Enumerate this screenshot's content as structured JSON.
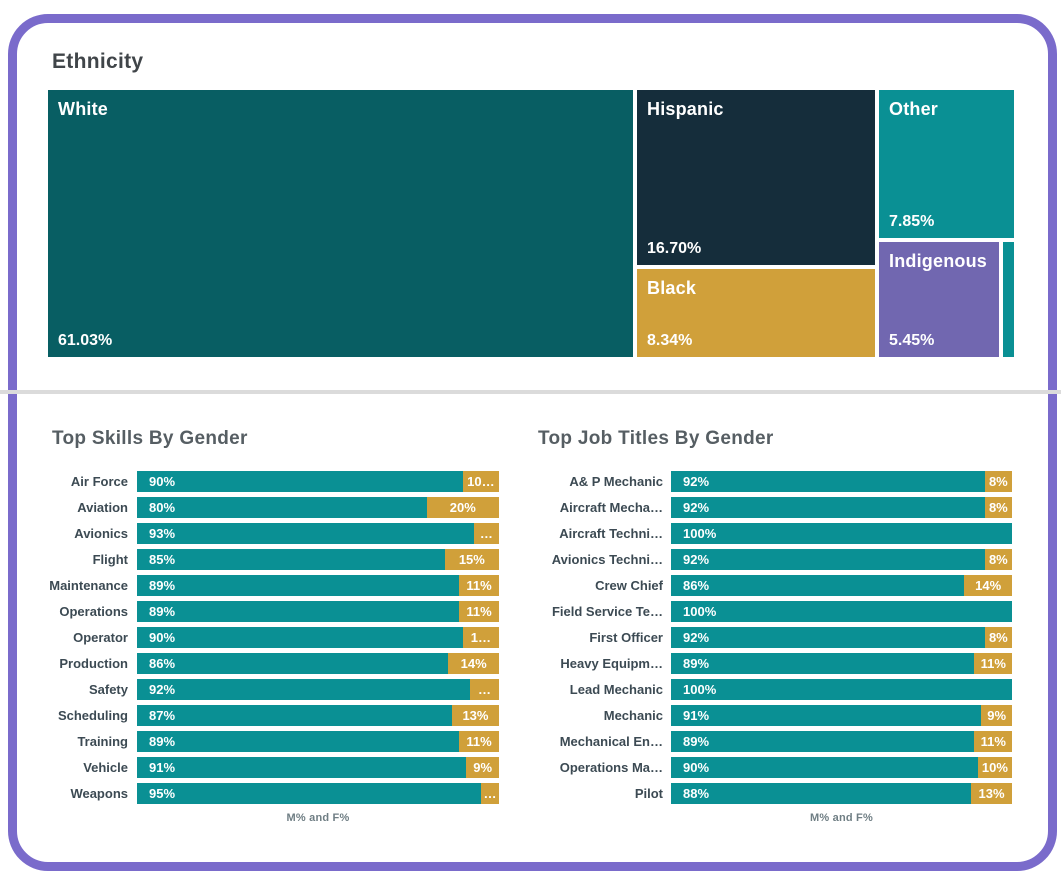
{
  "page": {
    "frame_border_color": "#7A6BCB",
    "divider_color": "#DBDBDB",
    "background_color": "#FFFFFF"
  },
  "palette": {
    "male_color": "#0A9094",
    "female_color": "#D0A03A",
    "title_color": "#565E63",
    "label_color": "#3C4A53"
  },
  "chart_data": [
    {
      "type": "treemap",
      "title": "Ethnicity",
      "items": [
        {
          "label": "White",
          "value": 61.03,
          "value_label": "61.03%",
          "color": "#085E63"
        },
        {
          "label": "Hispanic",
          "value": 16.7,
          "value_label": "16.70%",
          "color": "#152D3B"
        },
        {
          "label": "Black",
          "value": 8.34,
          "value_label": "8.34%",
          "color": "#D0A03A"
        },
        {
          "label": "Other",
          "value": 7.85,
          "value_label": "7.85%",
          "color": "#0A9094"
        },
        {
          "label": "Indigenous",
          "value": 5.45,
          "value_label": "5.45%",
          "color": "#7167B0"
        },
        {
          "label": "",
          "value": 0.63,
          "value_label": "",
          "color": "#0A9094"
        }
      ]
    },
    {
      "type": "bar",
      "orientation": "horizontal",
      "stacked": true,
      "title": "Top Skills By Gender",
      "xlabel": "M% and F%",
      "xlim": [
        0,
        100
      ],
      "series": [
        {
          "name": "M%",
          "color": "#0A9094"
        },
        {
          "name": "F%",
          "color": "#D0A03A"
        }
      ],
      "rows": [
        {
          "label": "Air Force",
          "m": 90,
          "f": 10,
          "m_label": "90%",
          "f_label": "10…"
        },
        {
          "label": "Aviation",
          "m": 80,
          "f": 20,
          "m_label": "80%",
          "f_label": "20%"
        },
        {
          "label": "Avionics",
          "m": 93,
          "f": 7,
          "m_label": "93%",
          "f_label": "…"
        },
        {
          "label": "Flight",
          "m": 85,
          "f": 15,
          "m_label": "85%",
          "f_label": "15%"
        },
        {
          "label": "Maintenance",
          "m": 89,
          "f": 11,
          "m_label": "89%",
          "f_label": "11%"
        },
        {
          "label": "Operations",
          "m": 89,
          "f": 11,
          "m_label": "89%",
          "f_label": "11%"
        },
        {
          "label": "Operator",
          "m": 90,
          "f": 10,
          "m_label": "90%",
          "f_label": "1…"
        },
        {
          "label": "Production",
          "m": 86,
          "f": 14,
          "m_label": "86%",
          "f_label": "14%"
        },
        {
          "label": "Safety",
          "m": 92,
          "f": 8,
          "m_label": "92%",
          "f_label": "…"
        },
        {
          "label": "Scheduling",
          "m": 87,
          "f": 13,
          "m_label": "87%",
          "f_label": "13%"
        },
        {
          "label": "Training",
          "m": 89,
          "f": 11,
          "m_label": "89%",
          "f_label": "11%"
        },
        {
          "label": "Vehicle",
          "m": 91,
          "f": 9,
          "m_label": "91%",
          "f_label": "9%"
        },
        {
          "label": "Weapons",
          "m": 95,
          "f": 5,
          "m_label": "95%",
          "f_label": "…"
        }
      ]
    },
    {
      "type": "bar",
      "orientation": "horizontal",
      "stacked": true,
      "title": "Top Job Titles By Gender",
      "xlabel": "M% and F%",
      "xlim": [
        0,
        100
      ],
      "series": [
        {
          "name": "M%",
          "color": "#0A9094"
        },
        {
          "name": "F%",
          "color": "#D0A03A"
        }
      ],
      "rows": [
        {
          "label": "A& P Mechanic",
          "m": 92,
          "f": 8,
          "m_label": "92%",
          "f_label": "8%"
        },
        {
          "label": "Aircraft Mecha…",
          "m": 92,
          "f": 8,
          "m_label": "92%",
          "f_label": "8%"
        },
        {
          "label": "Aircraft Techni…",
          "m": 100,
          "f": 0,
          "m_label": "100%",
          "f_label": ""
        },
        {
          "label": "Avionics Techni…",
          "m": 92,
          "f": 8,
          "m_label": "92%",
          "f_label": "8%"
        },
        {
          "label": "Crew Chief",
          "m": 86,
          "f": 14,
          "m_label": "86%",
          "f_label": "14%"
        },
        {
          "label": "Field Service Te…",
          "m": 100,
          "f": 0,
          "m_label": "100%",
          "f_label": ""
        },
        {
          "label": "First Officer",
          "m": 92,
          "f": 8,
          "m_label": "92%",
          "f_label": "8%"
        },
        {
          "label": "Heavy Equipm…",
          "m": 89,
          "f": 11,
          "m_label": "89%",
          "f_label": "11%"
        },
        {
          "label": "Lead Mechanic",
          "m": 100,
          "f": 0,
          "m_label": "100%",
          "f_label": ""
        },
        {
          "label": "Mechanic",
          "m": 91,
          "f": 9,
          "m_label": "91%",
          "f_label": "9%"
        },
        {
          "label": "Mechanical En…",
          "m": 89,
          "f": 11,
          "m_label": "89%",
          "f_label": "11%"
        },
        {
          "label": "Operations Ma…",
          "m": 90,
          "f": 10,
          "m_label": "90%",
          "f_label": "10%"
        },
        {
          "label": "Pilot",
          "m": 88,
          "f": 13,
          "m_label": "88%",
          "f_label": "13%"
        }
      ]
    }
  ]
}
